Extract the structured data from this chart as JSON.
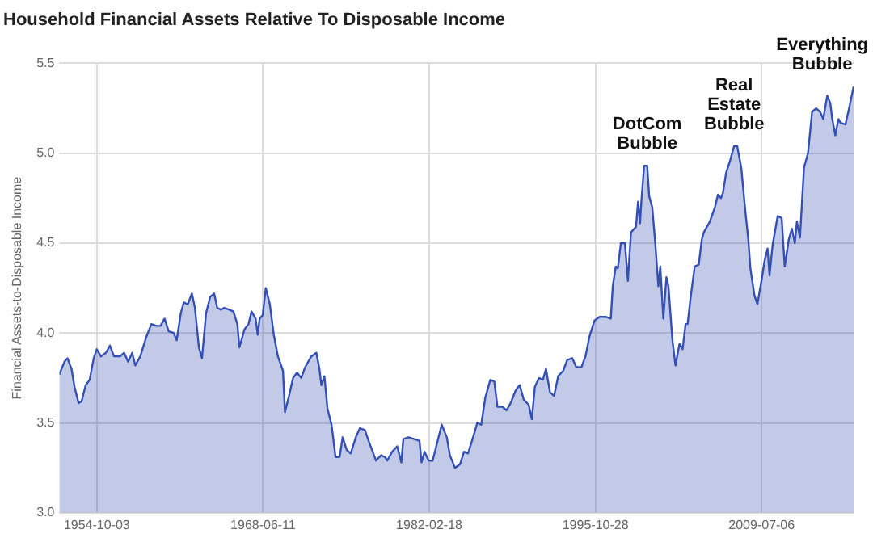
{
  "chart_data": {
    "type": "area",
    "title": "Household Financial Assets Relative To Disposable Income",
    "ylabel": "Financial Assets-to-Disposable Income",
    "x": [
      "1951-09",
      "1952-02",
      "1952-05",
      "1952-09",
      "1952-12",
      "1953-04",
      "1953-07",
      "1953-11",
      "1954-03",
      "1954-07",
      "1954-10",
      "1955-02",
      "1955-07",
      "1955-11",
      "1956-03",
      "1956-09",
      "1957-01",
      "1957-05",
      "1957-09",
      "1957-12",
      "1958-05",
      "1958-11",
      "1959-04",
      "1959-09",
      "1960-01",
      "1960-05",
      "1960-09",
      "1961-02",
      "1961-05",
      "1961-09",
      "1961-12",
      "1962-04",
      "1962-08",
      "1962-11",
      "1963-03",
      "1963-06",
      "1963-10",
      "1964-02",
      "1964-06",
      "1964-09",
      "1965-01",
      "1965-04",
      "1965-09",
      "1966-01",
      "1966-05",
      "1966-07",
      "1966-12",
      "1967-04",
      "1967-07",
      "1967-11",
      "1968-01",
      "1968-03",
      "1968-06",
      "1968-09",
      "1969-01",
      "1969-05",
      "1969-09",
      "1970-02",
      "1970-04",
      "1970-08",
      "1970-12",
      "1971-04",
      "1971-08",
      "1971-12",
      "1972-06",
      "1972-11",
      "1973-02",
      "1973-04",
      "1973-07",
      "1973-10",
      "1974-02",
      "1974-06",
      "1974-10",
      "1975-01",
      "1975-05",
      "1975-09",
      "1976-02",
      "1976-06",
      "1976-11",
      "1977-02",
      "1977-06",
      "1977-10",
      "1978-03",
      "1978-07",
      "1978-09",
      "1979-02",
      "1979-07",
      "1979-11",
      "1980-01",
      "1980-06",
      "1980-12",
      "1981-05",
      "1981-07",
      "1981-10",
      "1982-02",
      "1982-06",
      "1982-10",
      "1983-03",
      "1983-08",
      "1983-11",
      "1984-04",
      "1984-09",
      "1985-01",
      "1985-05",
      "1985-11",
      "1986-02",
      "1986-06",
      "1986-10",
      "1987-03",
      "1987-07",
      "1987-10",
      "1988-03",
      "1988-07",
      "1988-11",
      "1989-04",
      "1989-08",
      "1989-12",
      "1990-05",
      "1990-08",
      "1990-11",
      "1991-03",
      "1991-07",
      "1991-10",
      "1992-02",
      "1992-06",
      "1992-10",
      "1993-03",
      "1993-07",
      "1993-12",
      "1994-04",
      "1994-09",
      "1995-01",
      "1995-05",
      "1995-10",
      "1996-03",
      "1996-09",
      "1997-02",
      "1997-04",
      "1997-07",
      "1997-09",
      "1997-12",
      "1998-04",
      "1998-07",
      "1998-10",
      "1999-03",
      "1999-05",
      "1999-07",
      "1999-08",
      "1999-11",
      "2000-02",
      "2000-04",
      "2000-07",
      "2000-10",
      "2001-01",
      "2001-03",
      "2001-06",
      "2001-09",
      "2001-11",
      "2002-03",
      "2002-06",
      "2002-10",
      "2003-01",
      "2003-04",
      "2003-06",
      "2003-09",
      "2004-01",
      "2004-05",
      "2004-08",
      "2004-10",
      "2005-04",
      "2005-09",
      "2005-12",
      "2006-03",
      "2006-05",
      "2006-08",
      "2006-12",
      "2007-04",
      "2007-07",
      "2007-11",
      "2008-03",
      "2008-06",
      "2008-08",
      "2008-12",
      "2009-03",
      "2009-07",
      "2009-10",
      "2010-01",
      "2010-03",
      "2010-06",
      "2010-11",
      "2011-03",
      "2011-06",
      "2011-10",
      "2012-01",
      "2012-04",
      "2012-06",
      "2012-09",
      "2013-01",
      "2013-05",
      "2013-09",
      "2014-01",
      "2014-05",
      "2014-08",
      "2014-12",
      "2015-03",
      "2015-05",
      "2015-08",
      "2015-11",
      "2016-01",
      "2016-06",
      "2016-10",
      "2017-02"
    ],
    "series": [
      {
        "color": "#3450b4",
        "values": [
          3.77,
          3.84,
          3.86,
          3.8,
          3.7,
          3.61,
          3.62,
          3.71,
          3.74,
          3.86,
          3.91,
          3.87,
          3.89,
          3.93,
          3.87,
          3.87,
          3.89,
          3.84,
          3.89,
          3.82,
          3.87,
          3.98,
          4.05,
          4.04,
          4.04,
          4.08,
          4.01,
          4.0,
          3.96,
          4.11,
          4.17,
          4.16,
          4.22,
          4.14,
          3.92,
          3.86,
          4.11,
          4.2,
          4.22,
          4.14,
          4.13,
          4.14,
          4.13,
          4.12,
          4.05,
          3.92,
          4.02,
          4.05,
          4.12,
          4.08,
          3.99,
          4.08,
          4.1,
          4.25,
          4.16,
          3.99,
          3.87,
          3.79,
          3.56,
          3.65,
          3.75,
          3.78,
          3.75,
          3.81,
          3.87,
          3.89,
          3.8,
          3.71,
          3.76,
          3.58,
          3.49,
          3.31,
          3.31,
          3.42,
          3.35,
          3.33,
          3.42,
          3.47,
          3.46,
          3.41,
          3.35,
          3.29,
          3.32,
          3.31,
          3.29,
          3.34,
          3.37,
          3.28,
          3.41,
          3.42,
          3.41,
          3.4,
          3.28,
          3.34,
          3.29,
          3.29,
          3.38,
          3.49,
          3.42,
          3.32,
          3.25,
          3.27,
          3.34,
          3.33,
          3.44,
          3.5,
          3.49,
          3.64,
          3.74,
          3.73,
          3.59,
          3.59,
          3.57,
          3.61,
          3.68,
          3.71,
          3.63,
          3.6,
          3.52,
          3.7,
          3.75,
          3.74,
          3.8,
          3.67,
          3.65,
          3.76,
          3.79,
          3.85,
          3.86,
          3.81,
          3.81,
          3.87,
          3.98,
          4.07,
          4.09,
          4.09,
          4.08,
          4.26,
          4.37,
          4.36,
          4.5,
          4.5,
          4.29,
          4.56,
          4.59,
          4.73,
          4.61,
          4.71,
          4.93,
          4.93,
          4.76,
          4.7,
          4.5,
          4.26,
          4.37,
          4.08,
          4.31,
          4.26,
          3.96,
          3.82,
          3.94,
          3.91,
          4.05,
          4.05,
          4.2,
          4.37,
          4.38,
          4.52,
          4.56,
          4.62,
          4.7,
          4.77,
          4.75,
          4.78,
          4.89,
          4.96,
          5.04,
          5.04,
          4.92,
          4.68,
          4.52,
          4.36,
          4.21,
          4.16,
          4.29,
          4.4,
          4.47,
          4.32,
          4.49,
          4.65,
          4.64,
          4.37,
          4.52,
          4.58,
          4.5,
          4.62,
          4.53,
          4.92,
          5.0,
          5.23,
          5.25,
          5.23,
          5.19,
          5.32,
          5.28,
          5.19,
          5.1,
          5.19,
          5.17,
          5.16,
          5.26,
          5.37
        ]
      }
    ],
    "xlim": [
      "1951-09",
      "2017-02"
    ],
    "xticks": [
      "1954-10-03",
      "1968-06-11",
      "1982-02-18",
      "1995-10-28",
      "2009-07-06"
    ],
    "ylim": [
      3,
      5.5
    ],
    "yticks": [
      {
        "value": 3,
        "label": "3.0"
      },
      {
        "value": 3.5,
        "label": "3.5"
      },
      {
        "value": 4,
        "label": "4.0"
      },
      {
        "value": 4.5,
        "label": "4.5"
      },
      {
        "value": 5,
        "label": "5.0"
      },
      {
        "value": 5.5,
        "label": "5.5"
      }
    ],
    "grid": true,
    "legend": false,
    "annotations": [
      {
        "text": "DotCom Bubble",
        "x": "2000-02",
        "y": 4.93
      },
      {
        "text": "Real Estate Bubble",
        "x": "2007-04",
        "y": 5.04
      },
      {
        "text": "Everything Bubble",
        "x": "2017-02",
        "y": 5.37
      }
    ]
  }
}
